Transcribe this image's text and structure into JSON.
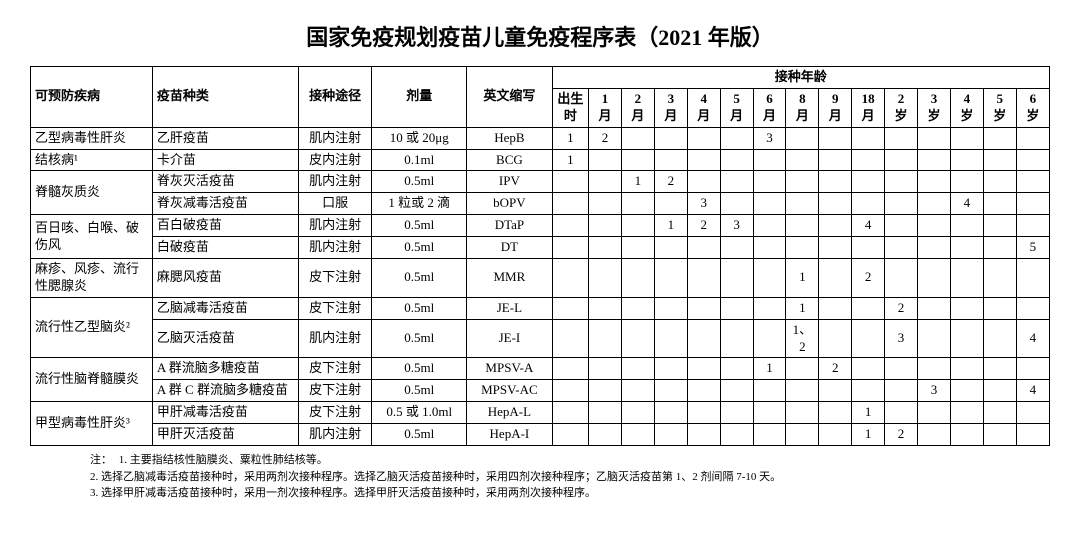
{
  "title": "国家免疫规划疫苗儿童免疫程序表（2021 年版）",
  "headers": {
    "disease": "可预防疾病",
    "vaccine": "疫苗种类",
    "route": "接种途径",
    "dose": "剂量",
    "abbr": "英文缩写",
    "age_group": "接种年龄",
    "ages": [
      "出生时",
      "1月",
      "2月",
      "3月",
      "4月",
      "5月",
      "6月",
      "8月",
      "9月",
      "18月",
      "2岁",
      "3岁",
      "4岁",
      "5岁",
      "6岁"
    ]
  },
  "rows": [
    {
      "disease": "乙型病毒性肝炎",
      "vaccine": "乙肝疫苗",
      "route": "肌内注射",
      "dose": "10 或 20μg",
      "abbr": "HepB",
      "cells": [
        "1",
        "2",
        "",
        "",
        "",
        "",
        "3",
        "",
        "",
        "",
        "",
        "",
        "",
        "",
        ""
      ]
    },
    {
      "disease": "结核病¹",
      "vaccine": "卡介苗",
      "route": "皮内注射",
      "dose": "0.1ml",
      "abbr": "BCG",
      "cells": [
        "1",
        "",
        "",
        "",
        "",
        "",
        "",
        "",
        "",
        "",
        "",
        "",
        "",
        "",
        ""
      ]
    },
    {
      "disease": "脊髓灰质炎",
      "rowspan": 2,
      "vaccine": "脊灰灭活疫苗",
      "route": "肌内注射",
      "dose": "0.5ml",
      "abbr": "IPV",
      "cells": [
        "",
        "",
        "1",
        "2",
        "",
        "",
        "",
        "",
        "",
        "",
        "",
        "",
        "",
        "",
        ""
      ]
    },
    {
      "vaccine": "脊灰减毒活疫苗",
      "route": "口服",
      "dose": "1 粒或 2 滴",
      "abbr": "bOPV",
      "cells": [
        "",
        "",
        "",
        "",
        "3",
        "",
        "",
        "",
        "",
        "",
        "",
        "",
        "4",
        "",
        ""
      ]
    },
    {
      "disease": "百日咳、白喉、破伤风",
      "rowspan": 2,
      "vaccine": "百白破疫苗",
      "route": "肌内注射",
      "dose": "0.5ml",
      "abbr": "DTaP",
      "cells": [
        "",
        "",
        "",
        "1",
        "2",
        "3",
        "",
        "",
        "",
        "4",
        "",
        "",
        "",
        "",
        ""
      ]
    },
    {
      "vaccine": "白破疫苗",
      "route": "肌内注射",
      "dose": "0.5ml",
      "abbr": "DT",
      "cells": [
        "",
        "",
        "",
        "",
        "",
        "",
        "",
        "",
        "",
        "",
        "",
        "",
        "",
        "",
        "5"
      ]
    },
    {
      "disease": "麻疹、风疹、流行性腮腺炎",
      "vaccine": "麻腮风疫苗",
      "route": "皮下注射",
      "dose": "0.5ml",
      "abbr": "MMR",
      "cells": [
        "",
        "",
        "",
        "",
        "",
        "",
        "",
        "1",
        "",
        "2",
        "",
        "",
        "",
        "",
        ""
      ]
    },
    {
      "disease": "流行性乙型脑炎²",
      "rowspan": 2,
      "vaccine": "乙脑减毒活疫苗",
      "route": "皮下注射",
      "dose": "0.5ml",
      "abbr": "JE-L",
      "cells": [
        "",
        "",
        "",
        "",
        "",
        "",
        "",
        "1",
        "",
        "",
        "2",
        "",
        "",
        "",
        ""
      ]
    },
    {
      "vaccine": "乙脑灭活疫苗",
      "route": "肌内注射",
      "dose": "0.5ml",
      "abbr": "JE-I",
      "cells": [
        "",
        "",
        "",
        "",
        "",
        "",
        "",
        "1、2",
        "",
        "",
        "3",
        "",
        "",
        "",
        "4"
      ]
    },
    {
      "disease": "流行性脑脊髓膜炎",
      "rowspan": 2,
      "vaccine": "A 群流脑多糖疫苗",
      "route": "皮下注射",
      "dose": "0.5ml",
      "abbr": "MPSV-A",
      "cells": [
        "",
        "",
        "",
        "",
        "",
        "",
        "1",
        "",
        "2",
        "",
        "",
        "",
        "",
        "",
        ""
      ]
    },
    {
      "vaccine": "A 群 C 群流脑多糖疫苗",
      "route": "皮下注射",
      "dose": "0.5ml",
      "abbr": "MPSV-AC",
      "cells": [
        "",
        "",
        "",
        "",
        "",
        "",
        "",
        "",
        "",
        "",
        "",
        "3",
        "",
        "",
        "4"
      ]
    },
    {
      "disease": "甲型病毒性肝炎³",
      "rowspan": 2,
      "vaccine": "甲肝减毒活疫苗",
      "route": "皮下注射",
      "dose": "0.5 或 1.0ml",
      "abbr": "HepA-L",
      "cells": [
        "",
        "",
        "",
        "",
        "",
        "",
        "",
        "",
        "",
        "1",
        "",
        "",
        "",
        "",
        ""
      ]
    },
    {
      "vaccine": "甲肝灭活疫苗",
      "route": "肌内注射",
      "dose": "0.5ml",
      "abbr": "HepA-I",
      "cells": [
        "",
        "",
        "",
        "",
        "",
        "",
        "",
        "",
        "",
        "1",
        "2",
        "",
        "",
        "",
        ""
      ]
    }
  ],
  "notes": {
    "label": "注：",
    "items": [
      "1. 主要指结核性脑膜炎、粟粒性肺结核等。",
      "2. 选择乙脑减毒活疫苗接种时，采用两剂次接种程序。选择乙脑灭活疫苗接种时，采用四剂次接种程序；乙脑灭活疫苗第 1、2 剂间隔 7-10 天。",
      "3. 选择甲肝减毒活疫苗接种时，采用一剂次接种程序。选择甲肝灭活疫苗接种时，采用两剂次接种程序。"
    ]
  }
}
